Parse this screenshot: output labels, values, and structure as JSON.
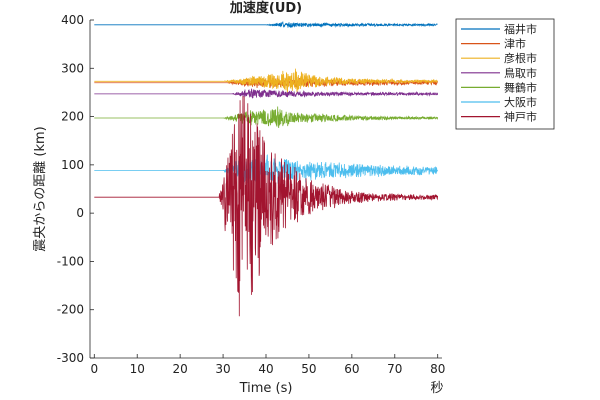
{
  "chart_data": {
    "type": "line",
    "title": "加速度(UD)",
    "xlabel": "Time (s)",
    "x_unit_label": "秒",
    "ylabel": "震央からの距離 (km)",
    "xlim": [
      -1,
      81
    ],
    "ylim": [
      -300,
      400
    ],
    "xticks": [
      0,
      10,
      20,
      30,
      40,
      50,
      60,
      70,
      80
    ],
    "yticks": [
      -300,
      -200,
      -100,
      0,
      100,
      200,
      300,
      400
    ],
    "grid": false,
    "legend_position": "outside-top-right",
    "series": [
      {
        "name": "福井市",
        "color": "#0072BD",
        "baseline": 390,
        "onset": 40,
        "envelope": [
          [
            0,
            0
          ],
          [
            40,
            0
          ],
          [
            44,
            7
          ],
          [
            48,
            5
          ],
          [
            55,
            4
          ],
          [
            65,
            3
          ],
          [
            80,
            2
          ]
        ]
      },
      {
        "name": "津市",
        "color": "#D95319",
        "baseline": 270,
        "onset": 31,
        "envelope": [
          [
            0,
            0
          ],
          [
            31,
            0
          ],
          [
            35,
            10
          ],
          [
            42,
            12
          ],
          [
            50,
            10
          ],
          [
            60,
            7
          ],
          [
            70,
            6
          ],
          [
            80,
            5
          ]
        ]
      },
      {
        "name": "彦根市",
        "color": "#EDB120",
        "baseline": 273,
        "onset": 30,
        "envelope": [
          [
            0,
            0
          ],
          [
            30,
            0
          ],
          [
            36,
            10
          ],
          [
            46,
            30
          ],
          [
            50,
            16
          ],
          [
            58,
            8
          ],
          [
            66,
            5
          ],
          [
            80,
            3
          ]
        ]
      },
      {
        "name": "鳥取市",
        "color": "#7E2F8E",
        "baseline": 247,
        "onset": 32,
        "envelope": [
          [
            0,
            0
          ],
          [
            32,
            0
          ],
          [
            36,
            12
          ],
          [
            42,
            9
          ],
          [
            52,
            5
          ],
          [
            62,
            4
          ],
          [
            80,
            3
          ]
        ]
      },
      {
        "name": "舞鶴市",
        "color": "#77AC30",
        "baseline": 197,
        "onset": 30,
        "envelope": [
          [
            0,
            0
          ],
          [
            30,
            0
          ],
          [
            34,
            12
          ],
          [
            42,
            28
          ],
          [
            46,
            14
          ],
          [
            54,
            10
          ],
          [
            62,
            5
          ],
          [
            80,
            3
          ]
        ]
      },
      {
        "name": "大阪市",
        "color": "#4DBEEE",
        "baseline": 88,
        "onset": 30,
        "envelope": [
          [
            0,
            0
          ],
          [
            30,
            0
          ],
          [
            34,
            30
          ],
          [
            39,
            38
          ],
          [
            46,
            28
          ],
          [
            55,
            20
          ],
          [
            65,
            14
          ],
          [
            80,
            9
          ]
        ]
      },
      {
        "name": "神戸市",
        "color": "#A2142F",
        "baseline": 33,
        "onset": 29,
        "envelope": [
          [
            0,
            0
          ],
          [
            29,
            0
          ],
          [
            31,
            110
          ],
          [
            34,
            300
          ],
          [
            37,
            220
          ],
          [
            40,
            140
          ],
          [
            44,
            90
          ],
          [
            50,
            40
          ],
          [
            58,
            18
          ],
          [
            66,
            10
          ],
          [
            80,
            6
          ]
        ]
      }
    ]
  }
}
